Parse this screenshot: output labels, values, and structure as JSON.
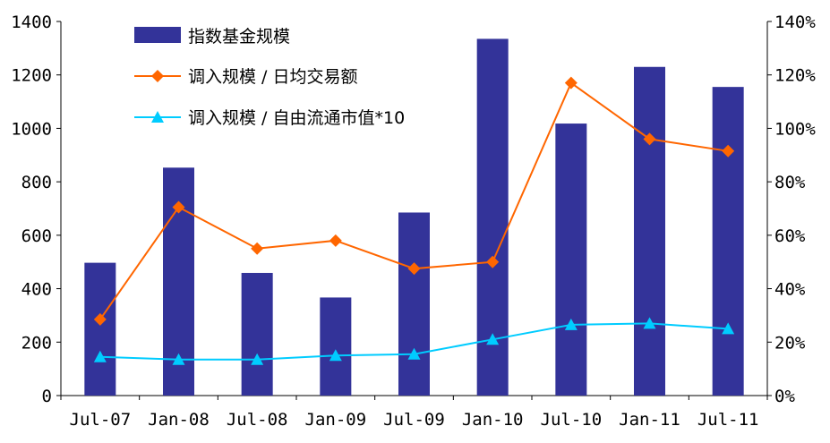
{
  "chart_data": {
    "type": "bar",
    "categories": [
      "Jul-07",
      "Jan-08",
      "Jul-08",
      "Jan-09",
      "Jul-09",
      "Jan-10",
      "Jul-10",
      "Jan-11",
      "Jul-11"
    ],
    "series": [
      {
        "name": "指数基金规模",
        "type": "bar",
        "axis": "left",
        "color": "#333399",
        "values": [
          497,
          853,
          459,
          367,
          685,
          1335,
          1018,
          1230,
          1155
        ]
      },
      {
        "name": "调入规模 / 日均交易额",
        "type": "line",
        "axis": "right",
        "color": "#FF6600",
        "marker": "diamond",
        "values": [
          28.5,
          70.5,
          55,
          58,
          47.5,
          50,
          117,
          96,
          91.5
        ]
      },
      {
        "name": "调入规模 / 自由流通市值*10",
        "type": "line",
        "axis": "right",
        "color": "#00CCFF",
        "marker": "triangle",
        "values": [
          14.5,
          13.5,
          13.5,
          15,
          15.5,
          21,
          26.5,
          27,
          25
        ]
      }
    ],
    "y_left": {
      "min": 0,
      "max": 1400,
      "ticks": [
        "0",
        "200",
        "400",
        "600",
        "800",
        "1000",
        "1200",
        "1400"
      ]
    },
    "y_right": {
      "min": 0,
      "max": 140,
      "ticks": [
        "0%",
        "20%",
        "40%",
        "60%",
        "80%",
        "100%",
        "120%",
        "140%"
      ]
    },
    "title": "",
    "xlabel": "",
    "ylabel": "",
    "legend_position": "top-left",
    "grid": false
  }
}
